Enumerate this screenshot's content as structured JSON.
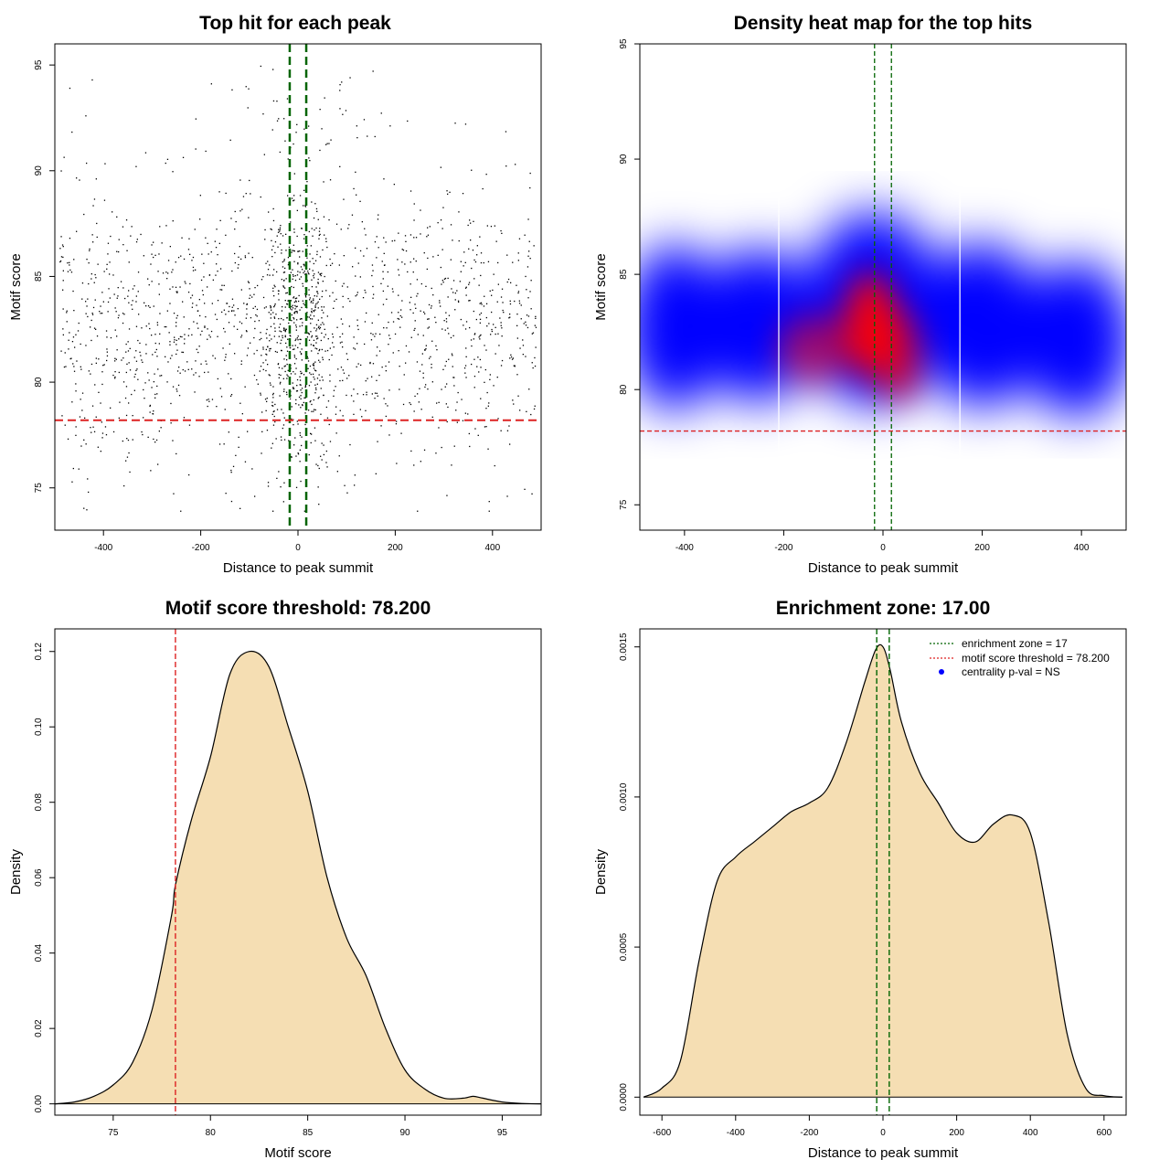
{
  "chart_data": [
    {
      "id": "scatter",
      "type": "scatter",
      "title": "Top hit for each peak",
      "xlabel": "Distance to peak summit",
      "ylabel": "Motif score",
      "xlim": [
        -500,
        500
      ],
      "ylim": [
        73,
        96
      ],
      "xticks": [
        -400,
        -200,
        0,
        200,
        400
      ],
      "yticks": [
        75,
        80,
        85,
        90,
        95
      ],
      "n_points": 2000,
      "enrichment_zone_lines": [
        -17,
        17
      ],
      "threshold_line": 78.2,
      "colors": {
        "points": "#000000",
        "zone": "#006400",
        "threshold": "#dd2222"
      }
    },
    {
      "id": "heatmap",
      "type": "heatmap",
      "title": "Density heat map for the top hits",
      "xlabel": "Distance to peak summit",
      "ylabel": "Motif score",
      "xlim": [
        -490,
        490
      ],
      "ylim": [
        73.9,
        95
      ],
      "xticks": [
        -400,
        -200,
        0,
        200,
        400
      ],
      "yticks": [
        75,
        80,
        85,
        90,
        95
      ],
      "enrichment_zone_lines": [
        -17,
        17
      ],
      "threshold_line": 78.2,
      "white_vlines": [
        -210,
        155
      ],
      "colors": {
        "low": "#ffffff",
        "mid": "#0000ff",
        "high": "#ff0000",
        "zone": "#006400",
        "threshold": "#dd2222"
      }
    },
    {
      "id": "score_density",
      "type": "area",
      "title": "Motif score threshold: 78.200",
      "xlabel": "Motif score",
      "ylabel": "Density",
      "xlim": [
        72,
        97
      ],
      "ylim": [
        -0.003,
        0.126
      ],
      "xticks": [
        75,
        80,
        85,
        90,
        95
      ],
      "yticks": [
        "0.00",
        "0.02",
        "0.04",
        "0.06",
        "0.08",
        "0.10",
        "0.12"
      ],
      "x": [
        72,
        73,
        74,
        75,
        76,
        77,
        78,
        78.2,
        79,
        80,
        81,
        82,
        83,
        84,
        85,
        86,
        87,
        88,
        89,
        90,
        91,
        92,
        93,
        93.5,
        94,
        95,
        96,
        97
      ],
      "y": [
        0.0,
        0.0005,
        0.002,
        0.005,
        0.011,
        0.025,
        0.05,
        0.058,
        0.075,
        0.092,
        0.114,
        0.12,
        0.116,
        0.1,
        0.083,
        0.06,
        0.044,
        0.034,
        0.02,
        0.009,
        0.004,
        0.0015,
        0.0015,
        0.002,
        0.0015,
        0.0005,
        0.0001,
        0.0
      ],
      "threshold_line": 78.2,
      "colors": {
        "fill": "#f5deb3",
        "line": "#000000",
        "threshold": "#dd2222"
      }
    },
    {
      "id": "distance_density",
      "type": "area",
      "title": "Enrichment zone: 17.00",
      "xlabel": "Distance to peak summit",
      "ylabel": "Density",
      "xlim": [
        -660,
        660
      ],
      "ylim": [
        -6e-05,
        0.00156
      ],
      "xticks": [
        -600,
        -400,
        -200,
        0,
        200,
        400,
        600
      ],
      "yticks": [
        "0.0000",
        "0.0005",
        "0.0010",
        "0.0015"
      ],
      "x": [
        -650,
        -600,
        -550,
        -500,
        -450,
        -400,
        -350,
        -300,
        -250,
        -200,
        -150,
        -100,
        -50,
        -20,
        0,
        20,
        50,
        100,
        150,
        200,
        250,
        300,
        350,
        400,
        450,
        500,
        550,
        600,
        650
      ],
      "y": [
        0.0,
        3e-05,
        0.00012,
        0.00045,
        0.00072,
        0.0008,
        0.00085,
        0.0009,
        0.00095,
        0.00098,
        0.00103,
        0.00118,
        0.00138,
        0.00149,
        0.0015,
        0.00142,
        0.00125,
        0.00108,
        0.00098,
        0.00088,
        0.00085,
        0.00091,
        0.00094,
        0.00088,
        0.00058,
        0.00021,
        3e-05,
        5e-06,
        0.0
      ],
      "enrichment_zone_lines": [
        -17,
        17
      ],
      "legend": {
        "placement": "top-right",
        "entries": [
          {
            "label": "enrichment zone = 17",
            "color": "#006400",
            "style": "dotted-line"
          },
          {
            "label": "motif score threshold = 78.200",
            "color": "#dd2222",
            "style": "dotted-line"
          },
          {
            "label": "centrality p-val = NS",
            "color": "#0000ff",
            "style": "dot"
          }
        ]
      },
      "colors": {
        "fill": "#f5deb3",
        "line": "#000000",
        "zone": "#006400"
      }
    }
  ]
}
